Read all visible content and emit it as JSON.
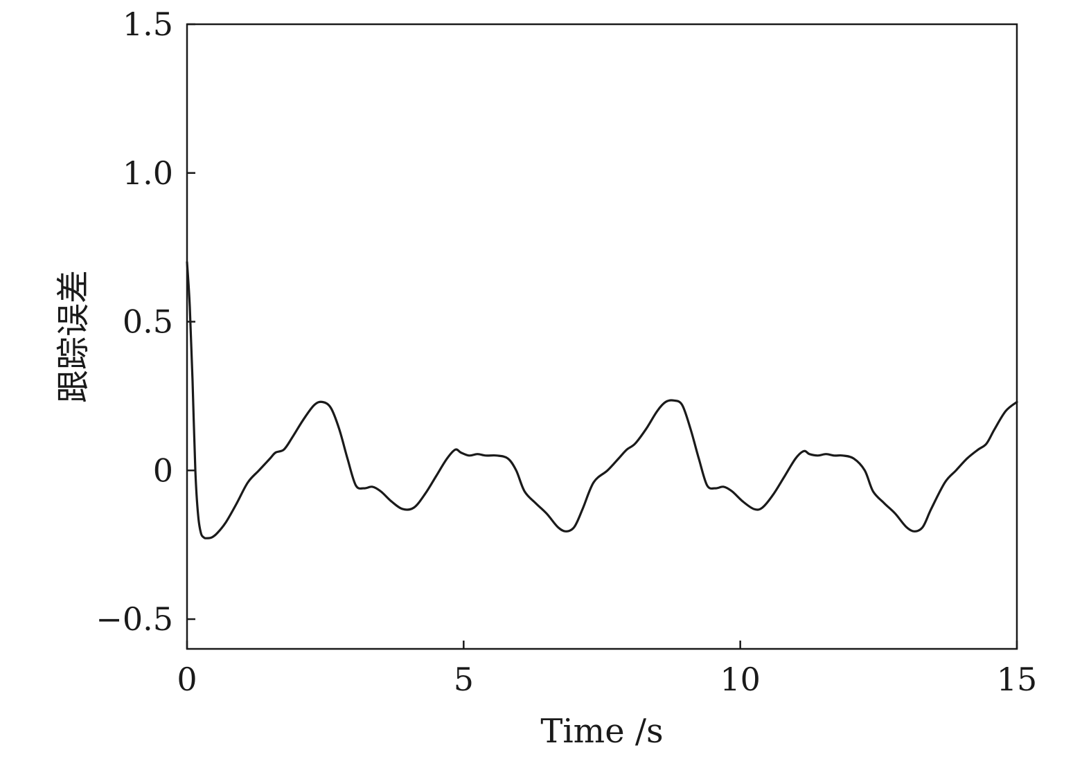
{
  "chart_data": {
    "type": "line",
    "xlabel": "Time /s",
    "ylabel": "跟踪误差",
    "xlim": [
      0,
      15
    ],
    "ylim": [
      -0.6,
      1.5
    ],
    "xticks": [
      0,
      5,
      10,
      15
    ],
    "xtick_labels": [
      "0",
      "5",
      "10",
      "15"
    ],
    "yticks": [
      -0.5,
      0,
      0.5,
      1.0,
      1.5
    ],
    "ytick_labels": [
      "−0.5",
      "0",
      "0.5",
      "1.0",
      "1.5"
    ],
    "grid": false,
    "legend": "none",
    "line_color": "#1a1a1a",
    "series": [
      {
        "x": [
          0,
          0.05,
          0.1,
          0.15,
          0.2,
          0.25,
          0.3,
          0.35,
          0.45,
          0.55,
          0.7,
          0.9,
          1.1,
          1.3,
          1.5,
          1.6,
          1.75,
          1.9,
          2.1,
          2.3,
          2.45,
          2.6,
          2.75,
          2.9,
          3.05,
          3.2,
          3.35,
          3.5,
          3.7,
          3.9,
          4.1,
          4.3,
          4.5,
          4.7,
          4.85,
          4.95,
          5.1,
          5.25,
          5.4,
          5.6,
          5.8,
          5.95,
          6.1,
          6.3,
          6.5,
          6.7,
          6.85,
          7.0,
          7.15,
          7.35,
          7.6,
          7.8,
          7.95,
          8.1,
          8.3,
          8.5,
          8.65,
          8.8,
          8.95,
          9.1,
          9.25,
          9.4,
          9.55,
          9.7,
          9.85,
          10.05,
          10.25,
          10.4,
          10.6,
          10.8,
          11.0,
          11.15,
          11.25,
          11.4,
          11.55,
          11.7,
          11.85,
          12.05,
          12.25,
          12.4,
          12.6,
          12.8,
          13.0,
          13.15,
          13.3,
          13.45,
          13.7,
          13.9,
          14.1,
          14.3,
          14.45,
          14.6,
          14.8,
          15.0
        ],
        "y": [
          0.7,
          0.55,
          0.3,
          0.0,
          -0.15,
          -0.21,
          -0.225,
          -0.228,
          -0.225,
          -0.21,
          -0.175,
          -0.11,
          -0.04,
          0.0,
          0.04,
          0.06,
          0.07,
          0.11,
          0.17,
          0.22,
          0.23,
          0.21,
          0.14,
          0.04,
          -0.05,
          -0.06,
          -0.055,
          -0.07,
          -0.105,
          -0.13,
          -0.125,
          -0.08,
          -0.02,
          0.04,
          0.07,
          0.06,
          0.05,
          0.055,
          0.05,
          0.05,
          0.04,
          0.0,
          -0.07,
          -0.11,
          -0.145,
          -0.19,
          -0.205,
          -0.19,
          -0.13,
          -0.04,
          0.0,
          0.04,
          0.07,
          0.09,
          0.14,
          0.2,
          0.23,
          0.235,
          0.22,
          0.14,
          0.04,
          -0.05,
          -0.06,
          -0.055,
          -0.07,
          -0.105,
          -0.13,
          -0.125,
          -0.08,
          -0.02,
          0.04,
          0.065,
          0.055,
          0.05,
          0.055,
          0.05,
          0.05,
          0.04,
          0.0,
          -0.07,
          -0.11,
          -0.145,
          -0.19,
          -0.205,
          -0.19,
          -0.13,
          -0.04,
          0.0,
          0.04,
          0.07,
          0.09,
          0.14,
          0.2,
          0.23
        ]
      }
    ]
  }
}
